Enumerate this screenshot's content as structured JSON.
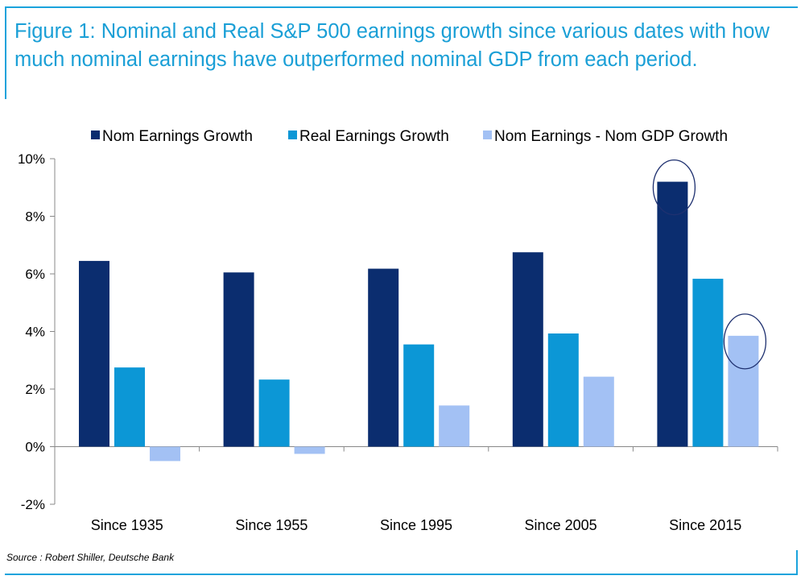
{
  "title": "Figure 1: Nominal and Real S&P 500 earnings growth since various dates with how much nominal earnings have outperformed nominal GDP from each period.",
  "source": "Source : Robert Shiller, Deutsche Bank",
  "chart_data": {
    "type": "bar",
    "categories": [
      "Since 1935",
      "Since 1955",
      "Since 1995",
      "Since 2005",
      "Since 2015"
    ],
    "series": [
      {
        "name": "Nom Earnings Growth",
        "color": "#0b2d6f",
        "values": [
          6.45,
          6.05,
          6.18,
          6.75,
          9.2
        ]
      },
      {
        "name": "Real Earnings Growth",
        "color": "#0c97d6",
        "values": [
          2.75,
          2.33,
          3.55,
          3.93,
          5.83
        ]
      },
      {
        "name": "Nom Earnings - Nom GDP Growth",
        "color": "#a3c1f4",
        "values": [
          -0.5,
          -0.25,
          1.43,
          2.43,
          3.85
        ]
      }
    ],
    "ylim": [
      -2,
      10
    ],
    "yticks": [
      -2,
      0,
      2,
      4,
      6,
      8,
      10
    ],
    "ytick_labels": [
      "-2%",
      "0%",
      "2%",
      "4%",
      "6%",
      "8%",
      "10%"
    ],
    "legend_position": "top",
    "grid": false,
    "annotations": [
      {
        "type": "circle",
        "series": "Nom Earnings Growth",
        "category": "Since 2015"
      },
      {
        "type": "circle",
        "series": "Nom Earnings - Nom GDP Growth",
        "category": "Since 2015"
      }
    ]
  }
}
